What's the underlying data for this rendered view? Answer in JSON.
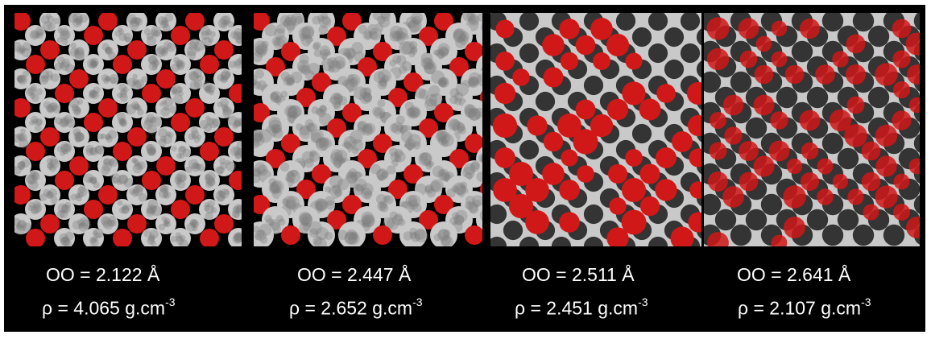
{
  "colors": {
    "background": "#000000",
    "cluster_light": "#c9c9c9",
    "cluster_dark": "#7a7a7a",
    "highlight_red": "#d01818",
    "pore_dark": "#1a1a1a"
  },
  "panels": [
    {
      "oo_label": "OO = 2.122 Å",
      "rho_text": "ρ = 4.065 g.cm",
      "rho_exp": "-3"
    },
    {
      "oo_label": "OO = 2.447 Å",
      "rho_text": "ρ = 2.652 g.cm",
      "rho_exp": "-3"
    },
    {
      "oo_label": "OO = 2.511 Å",
      "rho_text": "ρ = 2.451 g.cm",
      "rho_exp": "-3"
    },
    {
      "oo_label": "OO = 2.641 Å",
      "rho_text": "ρ = 2.107 g.cm",
      "rho_exp": "-3"
    }
  ]
}
